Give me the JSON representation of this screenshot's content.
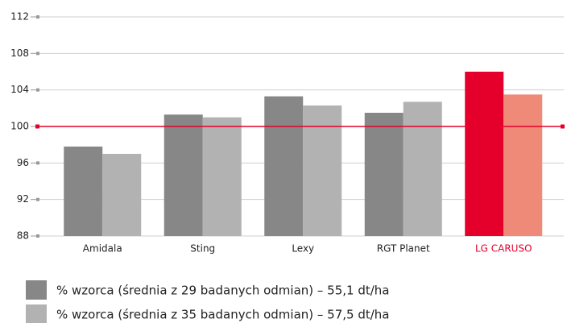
{
  "chart_data": {
    "type": "bar",
    "categories": [
      "Amidala",
      "Sting",
      "Lexy",
      "RGT Planet",
      "LG CARUSO"
    ],
    "category_colors": [
      "#222222",
      "#222222",
      "#222222",
      "#222222",
      "#e4002b"
    ],
    "series": [
      {
        "name": "% wzorca (średnia z 29 badanych odmian) – 55,1 dt/ha",
        "color": "#878787",
        "colors": [
          "#878787",
          "#878787",
          "#878787",
          "#878787",
          "#e4002b"
        ],
        "values": [
          97.8,
          101.3,
          103.3,
          101.5,
          106.0
        ]
      },
      {
        "name": "% wzorca (średnia z 35 badanych odmian) – 57,5 dt/ha",
        "color": "#b2b2b2",
        "colors": [
          "#b2b2b2",
          "#b2b2b2",
          "#b2b2b2",
          "#b2b2b2",
          "#f08a78"
        ],
        "values": [
          97.0,
          101.0,
          102.3,
          102.7,
          103.5
        ]
      }
    ],
    "ylim": [
      88,
      112
    ],
    "yticks": [
      88,
      92,
      96,
      100,
      104,
      108,
      112
    ],
    "grid": true,
    "reference_line": {
      "value": 100,
      "color": "#e4002b"
    },
    "legend": "bottom"
  }
}
